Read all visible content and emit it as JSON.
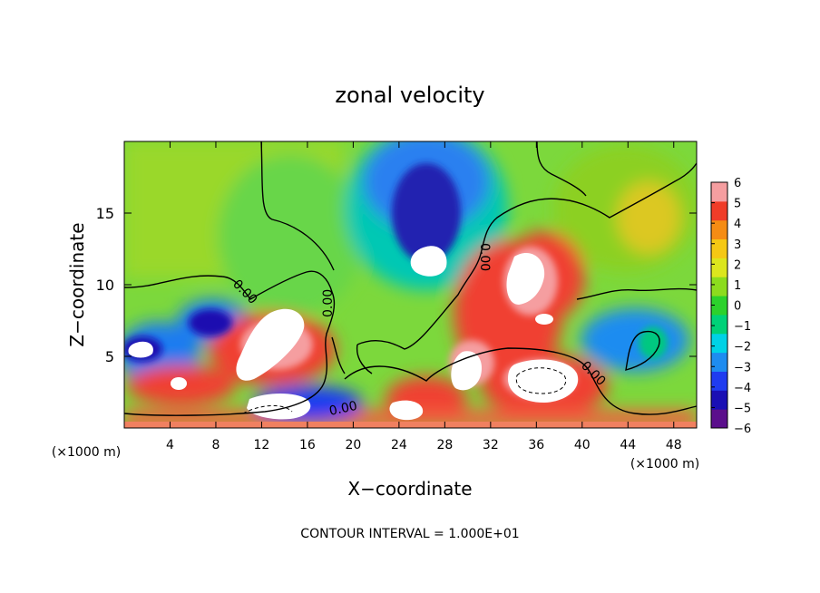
{
  "chart_data": {
    "type": "heatmap",
    "title": "zonal velocity",
    "xlabel": "X−coordinate",
    "ylabel": "Z−coordinate",
    "x_unit_left": "(×1000 m)",
    "x_unit_right": "(×1000 m)",
    "xlim": [
      0,
      50
    ],
    "ylim": [
      0,
      20
    ],
    "x_ticks": [
      4,
      8,
      12,
      16,
      20,
      24,
      28,
      32,
      36,
      40,
      44,
      48
    ],
    "y_ticks": [
      5,
      10,
      15
    ],
    "colorbar_ticks": [
      6,
      5,
      4,
      3,
      2,
      1,
      0,
      -1,
      -2,
      -3,
      -4,
      -5,
      -6
    ],
    "colorbar_range": [
      -6,
      6
    ],
    "colorscale": [
      "#5b0f8c",
      "#1a0fb4",
      "#1f3cf0",
      "#1e8cf0",
      "#00d2e6",
      "#00d278",
      "#2cd22c",
      "#8cdc1e",
      "#dce61e",
      "#f5c814",
      "#f58c14",
      "#f03c28",
      "#f59ea0"
    ],
    "contour_labels": [
      "0.00",
      "0.00",
      "0.00",
      "0.00",
      "0.00"
    ],
    "footer": "CONTOUR INTERVAL = 1.000E+01"
  }
}
